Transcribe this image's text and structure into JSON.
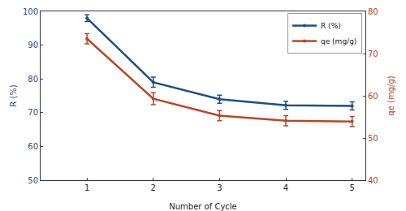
{
  "chart_data": {
    "type": "line",
    "x_label": "Number of Cycle",
    "y_label": "R (%)",
    "y2_label": "qe (mg/g)",
    "x": [
      1,
      2,
      3,
      4,
      5
    ],
    "xlim": [
      0.3,
      5.2
    ],
    "xticks": [
      1,
      2,
      3,
      4,
      5
    ],
    "ylim": [
      50,
      100
    ],
    "yticks": [
      50,
      60,
      70,
      80,
      90,
      100
    ],
    "y2lim": [
      40,
      80
    ],
    "y2ticks": [
      40,
      50,
      60,
      70,
      80
    ],
    "grid": false,
    "legend": "upper right",
    "series": [
      {
        "name": "R (%)",
        "color": "#1f4f82",
        "values": [
          98,
          79,
          74,
          72.2,
          72
        ],
        "error": [
          1,
          1.5,
          1.2,
          1.2,
          1.2
        ],
        "marker": "circle",
        "line_style": "solid"
      },
      {
        "name": "qe (mg/g)",
        "color": "#b5472b",
        "axis": "y2",
        "values": [
          73.5,
          59.3,
          55.3,
          54.1,
          53.9
        ],
        "error": [
          1.2,
          1.4,
          1.2,
          1.2,
          1.2
        ],
        "marker": "circle",
        "line_style": "solid"
      }
    ]
  }
}
